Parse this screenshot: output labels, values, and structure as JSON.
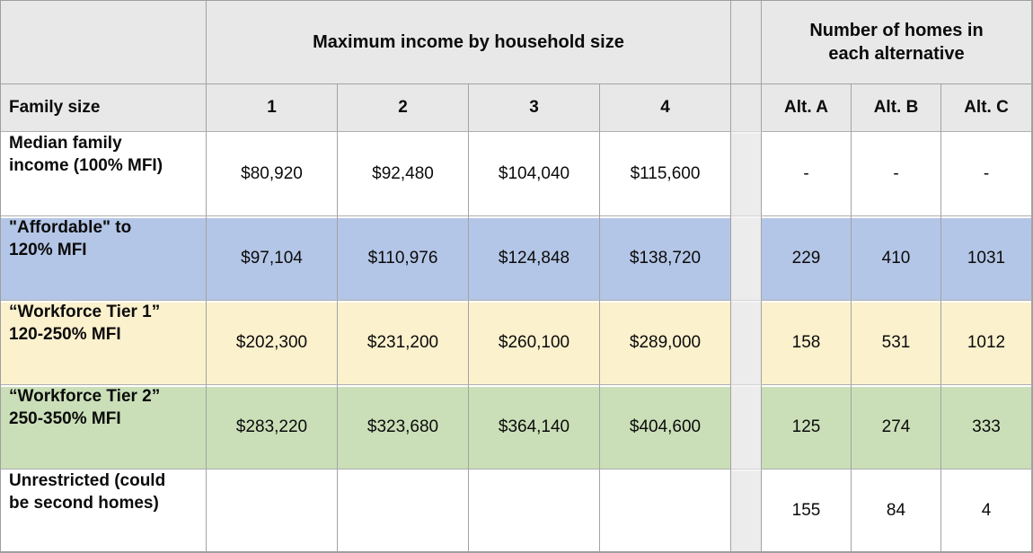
{
  "table": {
    "header": {
      "income_group_title_lines": [
        "Maximum income by household size"
      ],
      "homes_group_title_lines": [
        "Number of homes in",
        "each alternative"
      ],
      "family_size_label": "Family size",
      "household_sizes": [
        "1",
        "2",
        "3",
        "4"
      ],
      "alternatives": [
        "Alt. A",
        "Alt. B",
        "Alt. C"
      ]
    },
    "rows": [
      {
        "label_lines": [
          "Median family",
          "income (100% MFI)"
        ],
        "incomes": [
          "$80,920",
          "$92,480",
          "$104,040",
          "$115,600"
        ],
        "homes": [
          "-",
          "-",
          "-"
        ],
        "row_color": "#ffffff"
      },
      {
        "label_lines": [
          "\"Affordable\" to",
          "120% MFI"
        ],
        "incomes": [
          "$97,104",
          "$110,976",
          "$124,848",
          "$138,720"
        ],
        "homes": [
          "229",
          "410",
          "1031"
        ],
        "row_color": "#b4c6e7"
      },
      {
        "label_lines": [
          "“Workforce Tier 1”",
          "120-250% MFI"
        ],
        "incomes": [
          "$202,300",
          "$231,200",
          "$260,100",
          "$289,000"
        ],
        "homes": [
          "158",
          "531",
          "1012"
        ],
        "row_color": "#fbf1cd"
      },
      {
        "label_lines": [
          "“Workforce Tier 2”",
          "250-350% MFI"
        ],
        "incomes": [
          "$283,220",
          "$323,680",
          "$364,140",
          "$404,600"
        ],
        "homes": [
          "125",
          "274",
          "333"
        ],
        "row_color": "#cadfb8"
      },
      {
        "label_lines": [
          "Unrestricted (could",
          "be second homes)"
        ],
        "incomes": [
          "",
          "",
          "",
          ""
        ],
        "homes": [
          "155",
          "84",
          "4"
        ],
        "row_color": "#ffffff"
      }
    ],
    "colors": {
      "header_bg": "#e9e8e8",
      "spacer_bg": "#ececec",
      "grid_line": "#a3a3a3",
      "row_blue": "#b4c6e7",
      "row_yellow": "#fbf1cd",
      "row_green": "#cadfb8"
    }
  },
  "chart_data": {
    "type": "table",
    "title": "",
    "column_groups": [
      {
        "label": "Maximum income by household size",
        "columns": [
          "1",
          "2",
          "3",
          "4"
        ]
      },
      {
        "label": "Number of homes in each alternative",
        "columns": [
          "Alt. A",
          "Alt. B",
          "Alt. C"
        ]
      }
    ],
    "columns": [
      "Family size",
      "1",
      "2",
      "3",
      "4",
      "Alt. A",
      "Alt. B",
      "Alt. C"
    ],
    "rows": [
      [
        "Median family income (100% MFI)",
        "$80,920",
        "$92,480",
        "$104,040",
        "$115,600",
        "-",
        "-",
        "-"
      ],
      [
        "\"Affordable\" to 120% MFI",
        "$97,104",
        "$110,976",
        "$124,848",
        "$138,720",
        "229",
        "410",
        "1031"
      ],
      [
        "“Workforce Tier 1” 120-250% MFI",
        "$202,300",
        "$231,200",
        "$260,100",
        "$289,000",
        "158",
        "531",
        "1012"
      ],
      [
        "“Workforce Tier 2” 250-350% MFI",
        "$283,220",
        "$323,680",
        "$364,140",
        "$404,600",
        "125",
        "274",
        "333"
      ],
      [
        "Unrestricted (could be second homes)",
        "",
        "",
        "",
        "",
        "155",
        "84",
        "4"
      ]
    ]
  }
}
